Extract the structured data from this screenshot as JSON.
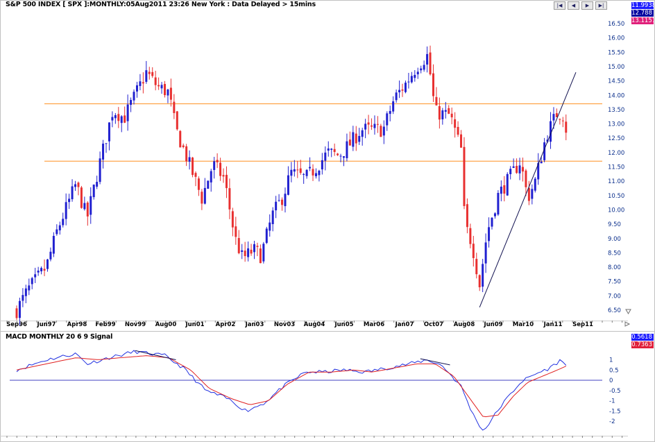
{
  "header": {
    "title": "S&P 500 INDEX [ SPX ]:MONTHLY:05Aug2011 23:26 New York  : Data Delayed > 15mins"
  },
  "nav_buttons": [
    "|◀",
    "◀",
    "▶",
    "▶|"
  ],
  "price_tags": [
    {
      "label": "11.9938",
      "color": "#1a1aff"
    },
    {
      "label": "12.788",
      "color": "#0000a0"
    },
    {
      "label": "13.1157",
      "color": "#e0207a"
    }
  ],
  "macd_header": {
    "title": "MACD MONTHLY 20 6 9 Signal"
  },
  "macd_tags": [
    {
      "label": "0.5618",
      "color": "#1a1aff"
    },
    {
      "label": "0.7363",
      "color": "#e0203a"
    }
  ],
  "colors": {
    "up": "#2020d0",
    "down": "#e83030",
    "support": "#ff9020",
    "trend": "#101050",
    "macd": "#2030e0",
    "signal": "#e02020",
    "zero": "#4040c0"
  },
  "chart_data": [
    {
      "type": "candlestick",
      "title": "S&P 500 INDEX [ SPX ]:MONTHLY:05Aug2011 23:26 New York  : Data Delayed > 15mins",
      "x_tick_labels": [
        "Sep96",
        "Jun97",
        "Apr98",
        "Feb99",
        "Nov99",
        "Aug00",
        "Jun01",
        "Apr02",
        "Jan03",
        "Nov03",
        "Aug04",
        "Jun05",
        "Mar06",
        "Jan07",
        "Oct07",
        "Aug08",
        "Jun09",
        "Mar10",
        "Jan11",
        "Sep11"
      ],
      "y_tick_labels": [
        "6.50",
        "7.00",
        "7.50",
        "8.00",
        "8.50",
        "9.00",
        "9.50",
        "10.00",
        "10.50",
        "11.00",
        "11.50",
        "12.00",
        "12.50",
        "13.00",
        "13.50",
        "14.00",
        "14.50",
        "15.00",
        "15.50",
        "16.00",
        "16.50"
      ],
      "ylim": [
        6.5,
        16.5
      ],
      "horizontal_levels": [
        13.7,
        11.7
      ],
      "trendline": {
        "from": [
          2009.2,
          6.6
        ],
        "to": [
          2011.8,
          14.8
        ]
      },
      "anchors": [
        [
          1996.7,
          6.5
        ],
        [
          1997.0,
          7.2
        ],
        [
          1997.5,
          8.0
        ],
        [
          1997.8,
          9.3
        ],
        [
          1998.3,
          10.9
        ],
        [
          1998.6,
          9.7
        ],
        [
          1998.9,
          11.4
        ],
        [
          1999.3,
          13.5
        ],
        [
          1999.6,
          13.2
        ],
        [
          1999.9,
          14.0
        ],
        [
          2000.2,
          14.8
        ],
        [
          2000.5,
          14.3
        ],
        [
          2000.8,
          14.1
        ],
        [
          2001.0,
          12.8
        ],
        [
          2001.3,
          11.8
        ],
        [
          2001.7,
          10.4
        ],
        [
          2002.0,
          11.6
        ],
        [
          2002.3,
          11.1
        ],
        [
          2002.6,
          9.0
        ],
        [
          2002.8,
          8.3
        ],
        [
          2003.1,
          8.6
        ],
        [
          2003.3,
          8.4
        ],
        [
          2003.6,
          9.8
        ],
        [
          2003.9,
          10.5
        ],
        [
          2004.1,
          11.3
        ],
        [
          2004.5,
          11.1
        ],
        [
          2004.8,
          11.5
        ],
        [
          2005.1,
          12.0
        ],
        [
          2005.4,
          11.9
        ],
        [
          2005.7,
          12.3
        ],
        [
          2006.0,
          12.8
        ],
        [
          2006.4,
          12.8
        ],
        [
          2006.6,
          12.8
        ],
        [
          2006.9,
          13.9
        ],
        [
          2007.2,
          14.4
        ],
        [
          2007.5,
          15.0
        ],
        [
          2007.8,
          15.4
        ],
        [
          2008.0,
          13.4
        ],
        [
          2008.4,
          13.3
        ],
        [
          2008.7,
          12.1
        ],
        [
          2008.8,
          9.5
        ],
        [
          2009.0,
          8.8
        ],
        [
          2009.2,
          7.4
        ],
        [
          2009.4,
          9.2
        ],
        [
          2009.7,
          10.5
        ],
        [
          2010.0,
          11.1
        ],
        [
          2010.3,
          11.7
        ],
        [
          2010.5,
          10.4
        ],
        [
          2010.7,
          11.0
        ],
        [
          2011.0,
          12.6
        ],
        [
          2011.3,
          13.4
        ],
        [
          2011.5,
          13.3
        ],
        [
          2011.6,
          11.9
        ]
      ]
    },
    {
      "type": "line",
      "title": "MACD MONTHLY 20 6 9 Signal",
      "y_tick_labels": [
        "1",
        "0.5",
        "0",
        "-0.5",
        "-1",
        "-1.5",
        "-2"
      ],
      "ylim": [
        -2.5,
        1.5
      ],
      "series": [
        {
          "name": "MACD",
          "values": [
            [
              1996.7,
              0.5
            ],
            [
              1997.5,
              1.0
            ],
            [
              1998.3,
              1.3
            ],
            [
              1998.6,
              0.8
            ],
            [
              1999.2,
              1.1
            ],
            [
              1999.9,
              1.4
            ],
            [
              2000.7,
              1.2
            ],
            [
              2001.2,
              0.6
            ],
            [
              2001.8,
              -0.5
            ],
            [
              2002.4,
              -0.9
            ],
            [
              2002.9,
              -1.5
            ],
            [
              2003.4,
              -1.1
            ],
            [
              2003.9,
              -0.3
            ],
            [
              2004.5,
              0.4
            ],
            [
              2005.0,
              0.4
            ],
            [
              2005.5,
              0.5
            ],
            [
              2006.1,
              0.4
            ],
            [
              2006.7,
              0.6
            ],
            [
              2007.3,
              0.8
            ],
            [
              2007.8,
              1.0
            ],
            [
              2008.2,
              0.7
            ],
            [
              2008.7,
              -0.3
            ],
            [
              2009.0,
              -1.6
            ],
            [
              2009.3,
              -2.5
            ],
            [
              2009.8,
              -1.2
            ],
            [
              2010.3,
              -0.1
            ],
            [
              2010.7,
              0.3
            ],
            [
              2011.1,
              0.6
            ],
            [
              2011.4,
              1.0
            ],
            [
              2011.6,
              0.56
            ]
          ]
        },
        {
          "name": "Signal",
          "values": [
            [
              1996.7,
              0.5
            ],
            [
              1997.5,
              0.8
            ],
            [
              1998.3,
              1.1
            ],
            [
              1998.9,
              1.0
            ],
            [
              1999.5,
              1.1
            ],
            [
              2000.2,
              1.2
            ],
            [
              2000.8,
              1.1
            ],
            [
              2001.4,
              0.5
            ],
            [
              2001.9,
              -0.4
            ],
            [
              2002.5,
              -0.9
            ],
            [
              2003.0,
              -1.2
            ],
            [
              2003.5,
              -1.0
            ],
            [
              2004.0,
              -0.2
            ],
            [
              2004.6,
              0.4
            ],
            [
              2005.2,
              0.4
            ],
            [
              2005.8,
              0.5
            ],
            [
              2006.3,
              0.4
            ],
            [
              2006.9,
              0.6
            ],
            [
              2007.5,
              0.8
            ],
            [
              2008.0,
              0.8
            ],
            [
              2008.5,
              0.2
            ],
            [
              2008.9,
              -0.8
            ],
            [
              2009.3,
              -1.8
            ],
            [
              2009.7,
              -1.7
            ],
            [
              2010.1,
              -0.8
            ],
            [
              2010.5,
              -0.1
            ],
            [
              2010.9,
              0.2
            ],
            [
              2011.3,
              0.5
            ],
            [
              2011.6,
              0.74
            ]
          ]
        }
      ]
    }
  ]
}
